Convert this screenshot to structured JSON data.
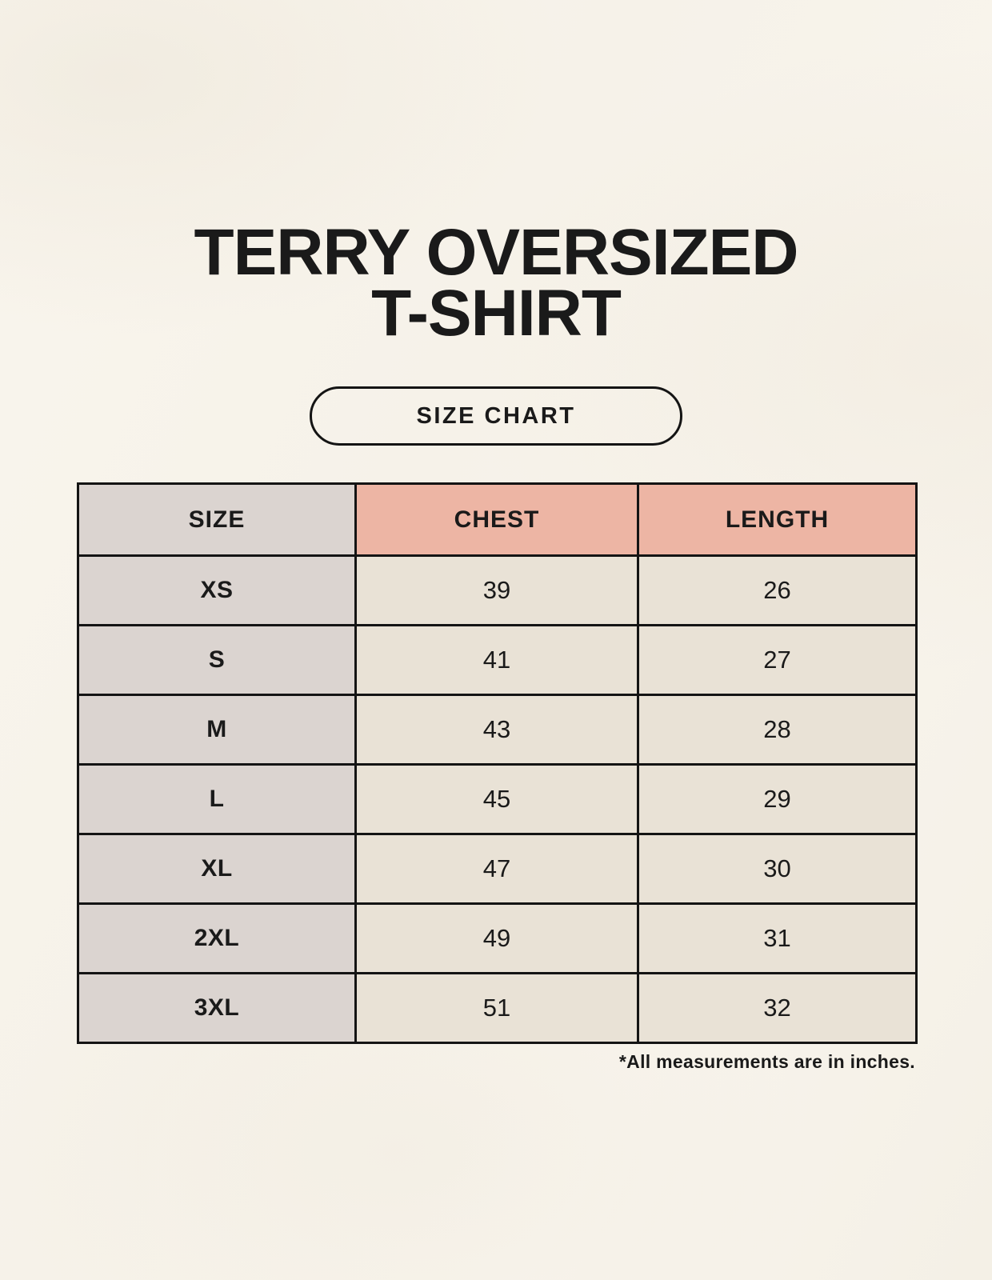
{
  "page": {
    "title_line1": "TERRY OVERSIZED",
    "title_line2": "T-SHIRT",
    "size_chart_label": "SIZE CHART",
    "footnote": "*All measurements are in inches."
  },
  "colors": {
    "page_background": "#F8F4EC",
    "header_accent": "#EDB5A4",
    "size_column": "#DBD4D0",
    "data_cell": "#E9E2D6",
    "border": "#141414",
    "text": "#1A1A1A"
  },
  "chart_data": {
    "type": "table",
    "title": "TERRY OVERSIZED T-SHIRT",
    "subtitle": "SIZE CHART",
    "unit_note": "*All measurements are in inches.",
    "columns": [
      "SIZE",
      "CHEST",
      "LENGTH"
    ],
    "rows": [
      {
        "size": "XS",
        "chest": 39,
        "length": 26
      },
      {
        "size": "S",
        "chest": 41,
        "length": 27
      },
      {
        "size": "M",
        "chest": 43,
        "length": 28
      },
      {
        "size": "L",
        "chest": 45,
        "length": 29
      },
      {
        "size": "XL",
        "chest": 47,
        "length": 30
      },
      {
        "size": "2XL",
        "chest": 49,
        "length": 31
      },
      {
        "size": "3XL",
        "chest": 51,
        "length": 32
      }
    ]
  }
}
